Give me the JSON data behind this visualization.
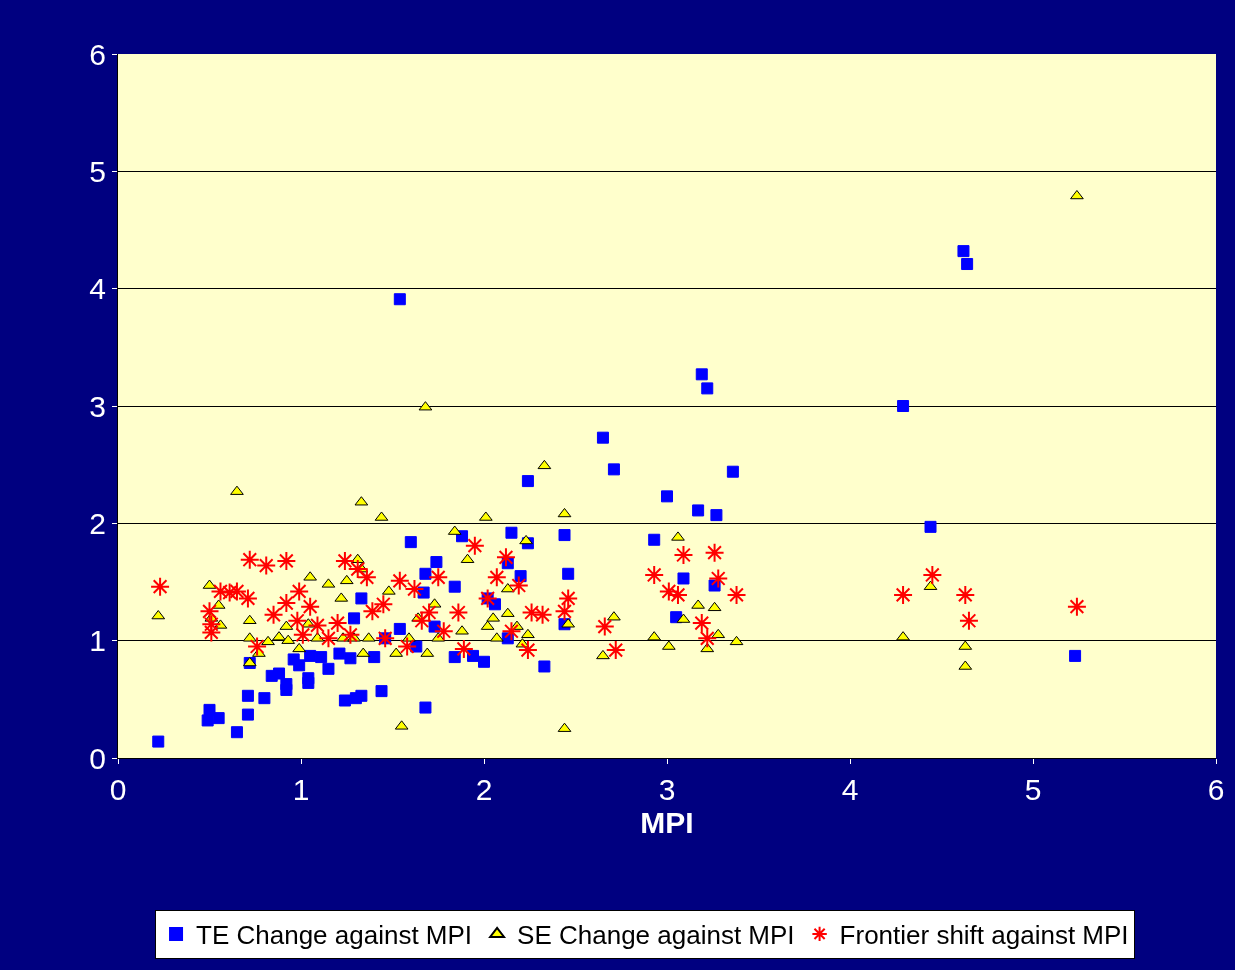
{
  "chart_data": {
    "type": "scatter",
    "xlabel": "MPI",
    "xlim": [
      0,
      6
    ],
    "xticks": [
      0,
      1,
      2,
      3,
      4,
      5,
      6
    ],
    "ylim": [
      0,
      6
    ],
    "yticks": [
      0,
      1,
      2,
      3,
      4,
      5,
      6
    ],
    "grid": "y",
    "legend": "bottom",
    "series": [
      {
        "name": "TE Change against MPI",
        "color": "#0000ff",
        "marker": "square",
        "x": [
          0.22,
          0.5,
          0.49,
          0.55,
          0.65,
          0.71,
          0.71,
          0.72,
          0.8,
          0.84,
          0.88,
          0.92,
          0.92,
          0.96,
          0.99,
          1.04,
          1.04,
          1.05,
          1.11,
          1.15,
          1.21,
          1.24,
          1.27,
          1.29,
          1.3,
          1.33,
          1.33,
          1.4,
          1.44,
          1.46,
          1.54,
          1.54,
          1.6,
          1.63,
          1.67,
          1.68,
          1.68,
          1.74,
          1.73,
          1.84,
          1.84,
          1.88,
          1.94,
          2.0,
          2.02,
          2.06,
          2.13,
          2.15,
          2.13,
          2.2,
          2.24,
          2.24,
          2.33,
          2.44,
          2.46,
          2.44,
          2.65,
          2.71,
          2.93,
          3.0,
          3.09,
          3.05,
          3.17,
          3.19,
          3.22,
          3.26,
          3.27,
          3.36,
          4.29,
          4.44,
          4.62,
          4.64,
          5.23
        ],
        "values": [
          0.14,
          0.41,
          0.32,
          0.34,
          0.22,
          0.53,
          0.37,
          0.81,
          0.51,
          0.7,
          0.72,
          0.58,
          0.63,
          0.84,
          0.79,
          0.64,
          0.68,
          0.87,
          0.86,
          0.76,
          0.89,
          0.49,
          0.85,
          1.19,
          0.51,
          0.53,
          1.36,
          0.86,
          0.57,
          1.02,
          3.91,
          1.1,
          1.84,
          0.95,
          1.41,
          1.57,
          0.43,
          1.67,
          1.12,
          1.46,
          0.86,
          1.89,
          0.87,
          0.82,
          1.36,
          1.31,
          1.02,
          1.92,
          1.66,
          1.55,
          2.36,
          1.83,
          0.78,
          1.9,
          1.57,
          1.14,
          2.73,
          2.46,
          1.86,
          2.23,
          1.53,
          1.2,
          2.11,
          3.27,
          3.15,
          1.47,
          2.07,
          2.44,
          3.0,
          1.97,
          4.32,
          4.21,
          0.87
        ]
      },
      {
        "name": "SE Change against MPI",
        "color": "#ffff00",
        "marker": "triangle",
        "x": [
          0.22,
          0.5,
          0.51,
          0.55,
          0.56,
          0.65,
          0.72,
          0.72,
          0.72,
          0.77,
          0.82,
          0.88,
          0.92,
          0.93,
          0.99,
          1.04,
          1.05,
          1.09,
          1.15,
          1.22,
          1.23,
          1.25,
          1.29,
          1.31,
          1.33,
          1.33,
          1.34,
          1.37,
          1.44,
          1.48,
          1.52,
          1.55,
          1.59,
          1.64,
          1.68,
          1.69,
          1.73,
          1.75,
          1.84,
          1.88,
          1.91,
          2.01,
          2.02,
          2.05,
          2.07,
          2.13,
          2.13,
          2.18,
          2.21,
          2.23,
          2.24,
          2.33,
          2.44,
          2.44,
          2.46,
          2.65,
          2.71,
          2.93,
          3.01,
          3.06,
          3.09,
          3.17,
          3.22,
          3.26,
          3.28,
          3.38,
          4.29,
          4.44,
          4.63,
          4.63,
          5.24
        ],
        "values": [
          1.21,
          1.47,
          1.19,
          1.3,
          1.13,
          2.27,
          1.17,
          1.02,
          0.81,
          0.89,
          0.99,
          1.03,
          1.12,
          1.0,
          0.93,
          1.14,
          1.54,
          1.02,
          1.48,
          1.36,
          1.02,
          1.51,
          1.02,
          1.69,
          2.18,
          1.61,
          0.89,
          1.02,
          2.05,
          1.42,
          0.89,
          0.27,
          1.02,
          1.19,
          2.99,
          0.89,
          1.31,
          1.02,
          1.93,
          1.08,
          1.69,
          2.05,
          1.12,
          1.19,
          1.02,
          1.44,
          1.23,
          1.12,
          0.97,
          1.85,
          1.05,
          2.49,
          2.08,
          0.25,
          1.14,
          0.87,
          1.2,
          1.03,
          0.95,
          1.88,
          1.18,
          1.3,
          0.93,
          1.28,
          1.05,
          0.99,
          1.03,
          1.46,
          0.95,
          0.78,
          4.79
        ]
      },
      {
        "name": "Frontier shift against MPI",
        "color": "#ff0000",
        "marker": "cross",
        "x": [
          0.23,
          0.5,
          0.51,
          0.51,
          0.56,
          0.61,
          0.65,
          0.71,
          0.72,
          0.76,
          0.81,
          0.85,
          0.92,
          0.92,
          0.98,
          0.99,
          1.01,
          1.05,
          1.09,
          1.15,
          1.2,
          1.24,
          1.27,
          1.31,
          1.36,
          1.39,
          1.45,
          1.46,
          1.54,
          1.58,
          1.62,
          1.66,
          1.7,
          1.75,
          1.78,
          1.86,
          1.89,
          1.95,
          2.02,
          2.07,
          2.12,
          2.15,
          2.19,
          2.24,
          2.26,
          2.32,
          2.44,
          2.46,
          2.66,
          2.72,
          2.93,
          3.01,
          3.06,
          3.09,
          3.19,
          3.22,
          3.26,
          3.28,
          3.38,
          4.29,
          4.45,
          4.63,
          4.65,
          5.24
        ],
        "values": [
          1.46,
          1.25,
          1.14,
          1.07,
          1.42,
          1.41,
          1.42,
          1.36,
          1.69,
          0.95,
          1.64,
          1.22,
          1.68,
          1.32,
          1.17,
          1.42,
          1.05,
          1.29,
          1.13,
          1.02,
          1.15,
          1.68,
          1.05,
          1.61,
          1.54,
          1.25,
          1.31,
          1.02,
          1.51,
          0.95,
          1.44,
          1.17,
          1.24,
          1.54,
          1.08,
          1.24,
          0.93,
          1.81,
          1.36,
          1.54,
          1.71,
          1.08,
          1.47,
          0.92,
          1.24,
          1.22,
          1.25,
          1.36,
          1.12,
          0.92,
          1.56,
          1.42,
          1.39,
          1.73,
          1.15,
          1.02,
          1.75,
          1.53,
          1.39,
          1.39,
          1.56,
          1.39,
          1.17,
          1.29
        ]
      }
    ]
  }
}
